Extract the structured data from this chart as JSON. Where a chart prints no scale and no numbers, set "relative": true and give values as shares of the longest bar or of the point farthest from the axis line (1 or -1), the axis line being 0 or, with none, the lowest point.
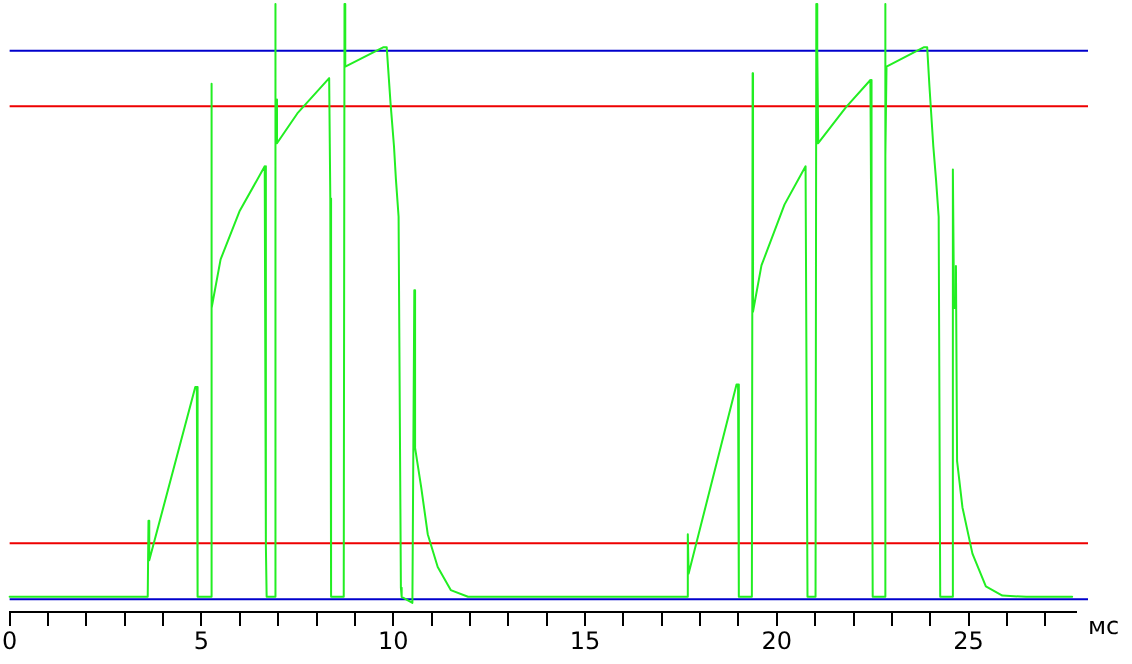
{
  "chart_data": {
    "type": "line",
    "relative": true,
    "xlabel": "мс",
    "xlim": [
      0,
      27.8
    ],
    "xticks": [
      0,
      {
        "value": 1,
        "label": null
      },
      {
        "value": 2,
        "label": null
      },
      {
        "value": 3,
        "label": null
      },
      {
        "value": 4,
        "label": null
      },
      5,
      {
        "value": 6,
        "label": null
      },
      {
        "value": 7,
        "label": null
      },
      {
        "value": 8,
        "label": null
      },
      {
        "value": 9,
        "label": null
      },
      10,
      {
        "value": 11,
        "label": null
      },
      {
        "value": 12,
        "label": null
      },
      {
        "value": 13,
        "label": null
      },
      {
        "value": 14,
        "label": null
      },
      15,
      {
        "value": 16,
        "label": null
      },
      {
        "value": 17,
        "label": null
      },
      {
        "value": 18,
        "label": null
      },
      {
        "value": 19,
        "label": null
      },
      20,
      {
        "value": 21,
        "label": null
      },
      {
        "value": 22,
        "label": null
      },
      {
        "value": 23,
        "label": null
      },
      {
        "value": 24,
        "label": null
      },
      25,
      {
        "value": 26,
        "label": null
      },
      {
        "value": 27,
        "label": null
      }
    ],
    "x": [
      0,
      3.6,
      3.62,
      3.64,
      4.84,
      4.88,
      4.9,
      5.24,
      5.26,
      5.27,
      5.5,
      6.0,
      6.65,
      6.68,
      6.7,
      6.9,
      6.92,
      6.94,
      6.95,
      6.97,
      7.5,
      8.33,
      8.36,
      8.38,
      8.71,
      8.73,
      8.75,
      9.75,
      9.83,
      9.93,
      10.02,
      10.07,
      10.14,
      10.2,
      10.22,
      10.5,
      10.55,
      10.57,
      10.73,
      10.9,
      11.16,
      11.5,
      11.95,
      17.66,
      17.68,
      17.7,
      18.95,
      18.99,
      19.01,
      19.35,
      19.37,
      19.38,
      19.6,
      20.2,
      20.75,
      20.8,
      21.01,
      21.03,
      21.05,
      21.06,
      21.08,
      21.8,
      22.44,
      22.47,
      22.5,
      22.8,
      22.82,
      22.84,
      22.86,
      23.84,
      23.92,
      23.98,
      24.08,
      24.15,
      24.22,
      24.26,
      24.57,
      24.59,
      24.62,
      24.67,
      24.7,
      24.84,
      25.1,
      25.45,
      25.88,
      26.5,
      27.7
    ],
    "series": [
      {
        "color": "#22ee22",
        "values": [
          0.025,
          0.025,
          0.15,
          0.085,
          0.37,
          0.37,
          0.025,
          0.025,
          0.869,
          0.5,
          0.58,
          0.66,
          0.733,
          0.11,
          0.025,
          0.025,
          1,
          0.771,
          0.843,
          0.771,
          0.82,
          0.878,
          0.68,
          0.025,
          0.025,
          1,
          0.897,
          0.929,
          0.929,
          0.837,
          0.766,
          0.712,
          0.65,
          0.04,
          0.025,
          0.015,
          0.529,
          0.27,
          0.205,
          0.128,
          0.074,
          0.036,
          0.025,
          0.025,
          0.128,
          0.063,
          0.374,
          0.374,
          0.025,
          0.025,
          0.886,
          0.494,
          0.57,
          0.67,
          0.733,
          0.025,
          0.025,
          1,
          0.771,
          0.925,
          0.771,
          0.83,
          0.875,
          0.548,
          0.025,
          0.025,
          1,
          0.75,
          0.897,
          0.929,
          0.929,
          0.864,
          0.766,
          0.712,
          0.65,
          0.025,
          0.025,
          0.728,
          0.5,
          0.569,
          0.248,
          0.172,
          0.096,
          0.042,
          0.027,
          0.025,
          0.025
        ]
      }
    ],
    "ref_lines": [
      {
        "axis": "y",
        "value": 0.923,
        "color": "#0000cc"
      },
      {
        "axis": "y",
        "value": 0.832,
        "color": "#ee0000"
      },
      {
        "axis": "y",
        "value": 0.113,
        "color": "#ee0000"
      },
      {
        "axis": "y",
        "value": 0.021,
        "color": "#0000cc"
      }
    ],
    "grid": false,
    "legend": false,
    "marker": "none"
  }
}
